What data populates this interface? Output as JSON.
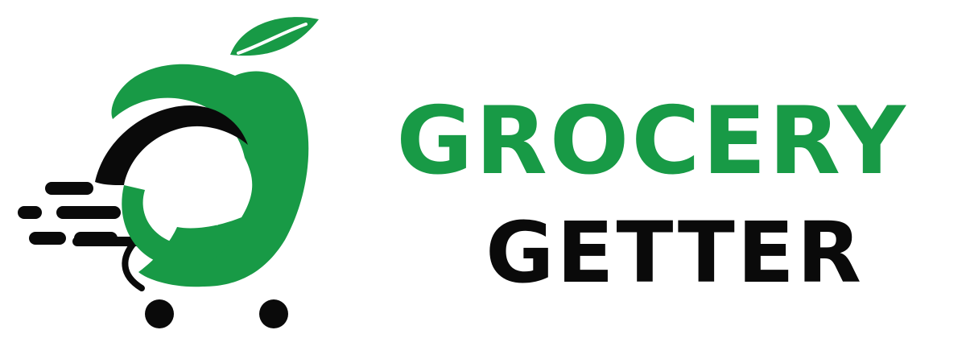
{
  "logo": {
    "word_top": "GROCERY",
    "word_bottom": "GETTER",
    "colors": {
      "green": "#189a46",
      "black": "#0a0a0a",
      "background": "#ffffff"
    },
    "icon": "apple-cart-g-icon"
  }
}
